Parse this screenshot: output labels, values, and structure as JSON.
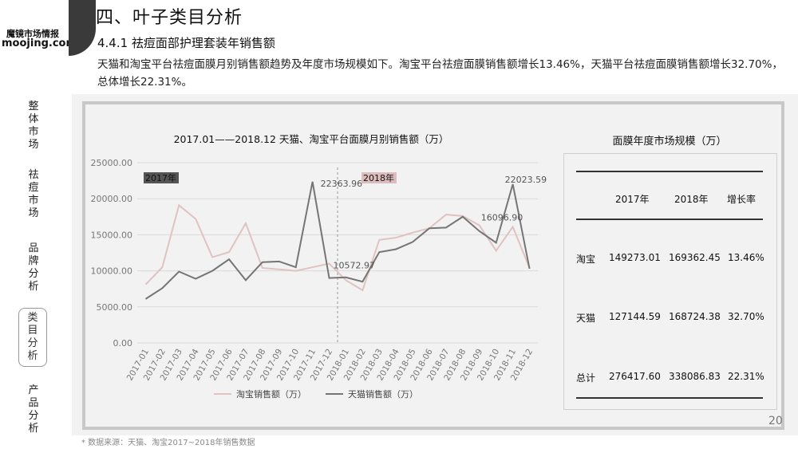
{
  "logo": {
    "cn": "魔镜市场情报",
    "en": "moojing.com"
  },
  "page": {
    "title": "四、叶子类目分析",
    "subtitle": "4.4.1 祛痘面部护理套装年销售额",
    "number": "20"
  },
  "description": "天猫和淘宝平台祛痘面膜月别销售额趋势及年度市场规模如下。淘宝平台祛痘面膜销售额增长13.46%，天猫平台祛痘面膜销售额增长32.70%，总体增长22.31%。",
  "sidebar": {
    "items": [
      {
        "label": "整体市场",
        "active": false
      },
      {
        "label": "祛痘市场",
        "active": false
      },
      {
        "label": "品牌分析",
        "active": false
      },
      {
        "label": "类目分析",
        "active": true
      },
      {
        "label": "产品分析",
        "active": false
      }
    ]
  },
  "footnote": "* 数据来源：天猫、淘宝2017~2018年销售数据",
  "chart_data": {
    "type": "line",
    "title": "2017.01——2018.12 天猫、淘宝平台面膜月别销售额（万）",
    "categories": [
      "2017-01",
      "2017-02",
      "2017-03",
      "2017-04",
      "2017-05",
      "2017-06",
      "2017-07",
      "2017-08",
      "2017-09",
      "2017-10",
      "2017-11",
      "2017-12",
      "2018-01",
      "2018-02",
      "2018-03",
      "2018-04",
      "2018-05",
      "2018-06",
      "2018-07",
      "2018-08",
      "2018-09",
      "2018-10",
      "2018-11",
      "2018-12"
    ],
    "yticks": [
      "25000.00",
      "20000.00",
      "15000.00",
      "10000.00",
      "5000.00",
      "0.00"
    ],
    "ylim": [
      0,
      25000
    ],
    "series": [
      {
        "name": "淘宝销售额（万）",
        "color": "#e0c2c2",
        "values": [
          8100,
          10500,
          19100,
          17200,
          11900,
          12600,
          16600,
          10400,
          10200,
          10000,
          10500,
          11000,
          8700,
          7300,
          14300,
          14600,
          15300,
          15900,
          17800,
          17600,
          16300,
          12800,
          16096.9,
          10400
        ]
      },
      {
        "name": "天猫销售额（万）",
        "color": "#757575",
        "values": [
          6100,
          7600,
          9900,
          8900,
          10000,
          11600,
          8700,
          11200,
          11300,
          10500,
          22363.96,
          9000,
          9100,
          8500,
          12600,
          13000,
          14000,
          15900,
          16000,
          17500,
          15500,
          13900,
          22023.59,
          10300
        ]
      }
    ],
    "annotations": [
      {
        "text": "22363.96"
      },
      {
        "text": "10572.97"
      },
      {
        "text": "22023.59"
      },
      {
        "text": "16096.90"
      }
    ],
    "year_tags": [
      {
        "text": "2017年",
        "color": "#555555"
      },
      {
        "text": "2018年",
        "color": "#dcbcbc"
      }
    ],
    "legend": "bottom"
  },
  "table": {
    "title": "面膜年度市场规模（万）",
    "headers": [
      "",
      "2017年",
      "2018年",
      "增长率"
    ],
    "rows": [
      {
        "label": "淘宝",
        "y2017": "149273.01",
        "y2018": "169362.45",
        "growth": "13.46%"
      },
      {
        "label": "天猫",
        "y2017": "127144.59",
        "y2018": "168724.38",
        "growth": "32.70%"
      },
      {
        "label": "总计",
        "y2017": "276417.60",
        "y2018": "338086.83",
        "growth": "22.31%"
      }
    ]
  }
}
